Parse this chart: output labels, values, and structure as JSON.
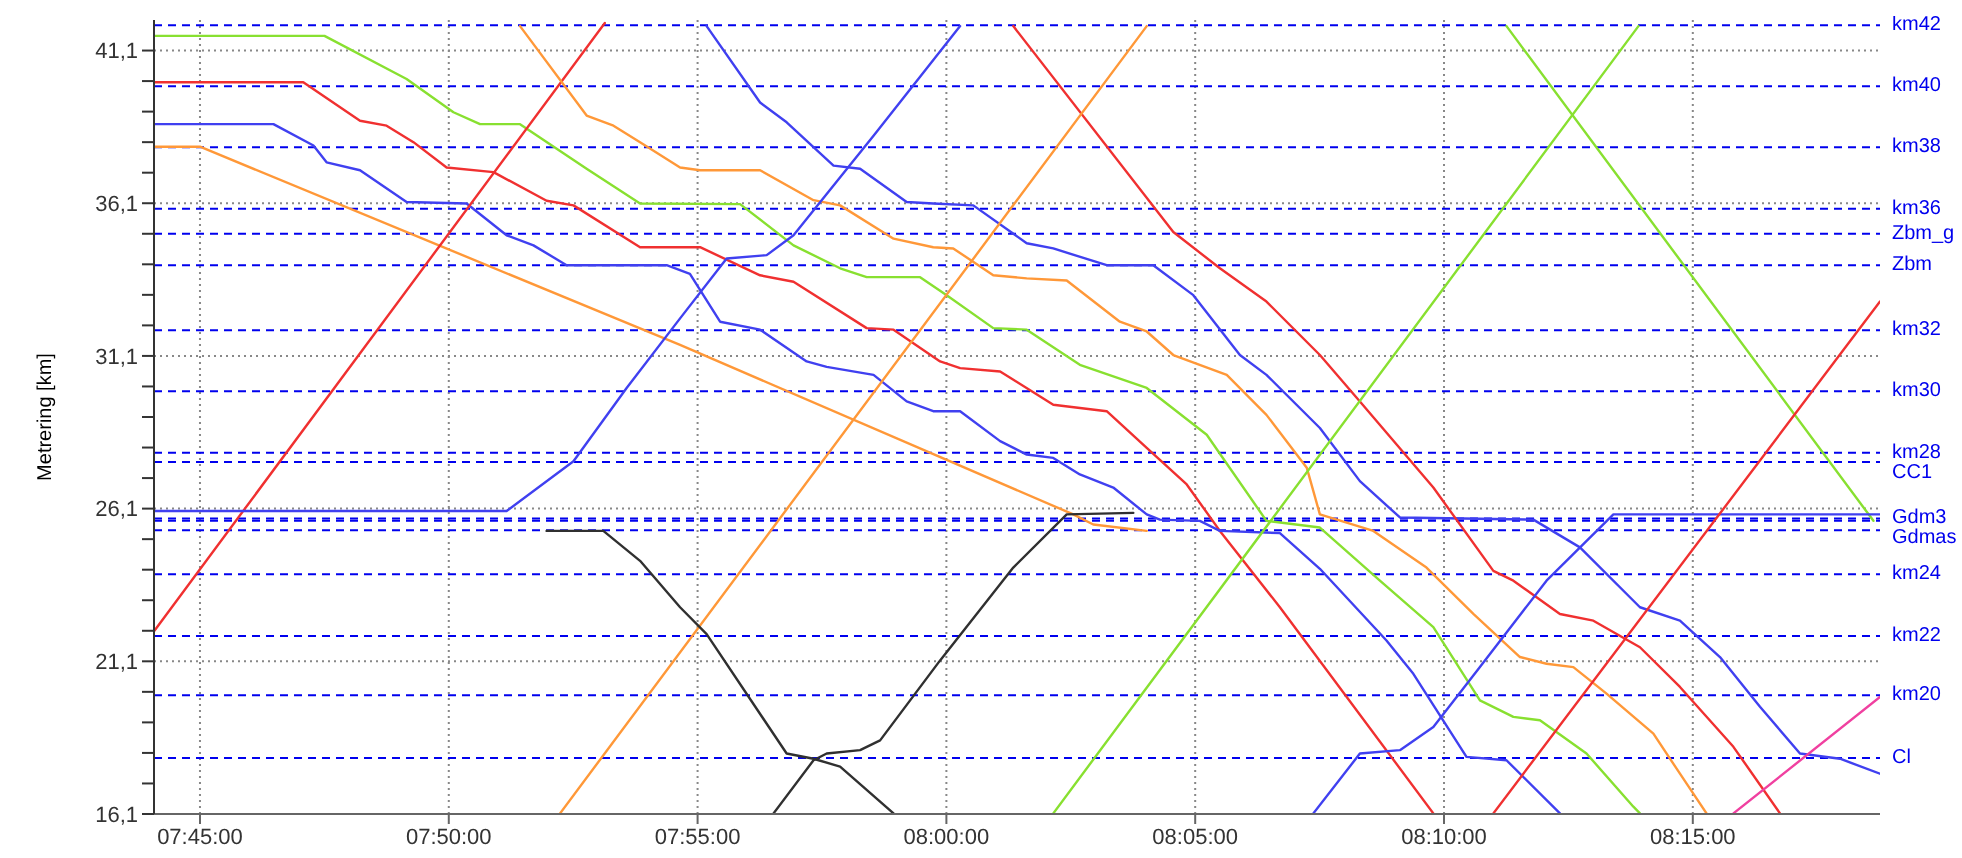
{
  "chart_data": {
    "type": "line",
    "ylabel": "Metrering [km]",
    "xlim": [
      7.7346,
      8.3127
    ],
    "ylim": [
      16.1,
      42.1
    ],
    "xticks": [
      {
        "value": 7.75,
        "label": "07:45:00"
      },
      {
        "value": 7.8333333,
        "label": "07:50:00"
      },
      {
        "value": 7.9166667,
        "label": "07:55:00"
      },
      {
        "value": 8.0,
        "label": "08:00:00"
      },
      {
        "value": 8.0833333,
        "label": "08:05:00"
      },
      {
        "value": 8.1666667,
        "label": "08:10:00"
      },
      {
        "value": 8.25,
        "label": "08:15:00"
      }
    ],
    "yticks": [
      {
        "value": 16.1,
        "label": "16,1"
      },
      {
        "value": 17.1,
        "label": null
      },
      {
        "value": 18.1,
        "label": null
      },
      {
        "value": 19.1,
        "label": null
      },
      {
        "value": 20.1,
        "label": null
      },
      {
        "value": 21.1,
        "label": "21,1"
      },
      {
        "value": 22.1,
        "label": null
      },
      {
        "value": 23.1,
        "label": null
      },
      {
        "value": 24.1,
        "label": null
      },
      {
        "value": 25.1,
        "label": null
      },
      {
        "value": 26.1,
        "label": "26,1"
      },
      {
        "value": 27.1,
        "label": null
      },
      {
        "value": 28.1,
        "label": null
      },
      {
        "value": 29.1,
        "label": null
      },
      {
        "value": 30.1,
        "label": null
      },
      {
        "value": 31.1,
        "label": "31,1"
      },
      {
        "value": 32.1,
        "label": null
      },
      {
        "value": 33.1,
        "label": null
      },
      {
        "value": 34.1,
        "label": null
      },
      {
        "value": 35.1,
        "label": null
      },
      {
        "value": 36.1,
        "label": "36,1"
      },
      {
        "value": 37.1,
        "label": null
      },
      {
        "value": 38.1,
        "label": null
      },
      {
        "value": 39.1,
        "label": null
      },
      {
        "value": 40.1,
        "label": null
      },
      {
        "value": 41.1,
        "label": "41,1"
      }
    ],
    "grid": true,
    "line_style": "solid",
    "ref_lines": [
      {
        "axis": "y",
        "value": 41.93,
        "label": "km42",
        "color": "#0000ee",
        "line_style": "dashed"
      },
      {
        "axis": "y",
        "value": 39.93,
        "label": "km40",
        "color": "#0000ee",
        "line_style": "dashed"
      },
      {
        "axis": "y",
        "value": 37.93,
        "label": "km38",
        "color": "#0000ee",
        "line_style": "dashed"
      },
      {
        "axis": "y",
        "value": 35.92,
        "label": "km36",
        "color": "#0000ee",
        "line_style": "dashed"
      },
      {
        "axis": "y",
        "value": 35.1,
        "label": "Zbm_g",
        "color": "#0000ee",
        "line_style": "dashed"
      },
      {
        "axis": "y",
        "value": 34.07,
        "label": "Zbm",
        "color": "#0000ee",
        "line_style": "dashed"
      },
      {
        "axis": "y",
        "value": 31.94,
        "label": "km32",
        "color": "#0000ee",
        "line_style": "dashed"
      },
      {
        "axis": "y",
        "value": 29.94,
        "label": "km30",
        "color": "#0000ee",
        "line_style": "dashed"
      },
      {
        "axis": "y",
        "value": 27.93,
        "label": "km28",
        "color": "#0000ee",
        "line_style": "dashed"
      },
      {
        "axis": "y",
        "value": 27.63,
        "label": "CC1",
        "color": "#0000ee",
        "line_style": "dashed"
      },
      {
        "axis": "y",
        "value": 25.78,
        "label": "Gdm3",
        "color": "#0000ee",
        "line_style": "dashed"
      },
      {
        "axis": "y",
        "value": 25.7,
        "label": null,
        "color": "#0000ee",
        "line_style": "dashed"
      },
      {
        "axis": "y",
        "value": 25.39,
        "label": "Gdmas",
        "color": "#0000ee",
        "line_style": "dashed"
      },
      {
        "axis": "y",
        "value": 23.95,
        "label": "km24",
        "color": "#0000ee",
        "line_style": "dashed"
      },
      {
        "axis": "y",
        "value": 21.93,
        "label": "km22",
        "color": "#0000ee",
        "line_style": "dashed"
      },
      {
        "axis": "y",
        "value": 19.99,
        "label": "km20",
        "color": "#0000ee",
        "line_style": "dashed"
      },
      {
        "axis": "y",
        "value": 17.93,
        "label": "Cl",
        "color": "#0000ee",
        "line_style": "dashed"
      }
    ],
    "series": [
      {
        "color": "#88e030",
        "x": [
          7.7348,
          7.7917,
          7.8192,
          7.8349,
          7.8438,
          7.8572,
          7.8795,
          7.8974,
          7.9309,
          7.9488,
          7.9644,
          7.9733,
          7.9912,
          8.0001,
          8.0157,
          8.0269,
          8.0447,
          8.0671,
          8.0872,
          8.1072,
          8.1251,
          8.1452,
          8.1631,
          8.1787,
          8.1899,
          8.1988,
          8.2144,
          8.2301,
          8.2323
        ],
        "values": [
          41.58,
          41.58,
          40.17,
          39.08,
          38.69,
          38.69,
          37.23,
          36.09,
          36.07,
          34.72,
          33.97,
          33.68,
          33.68,
          33.09,
          32.01,
          31.96,
          30.81,
          30.05,
          28.52,
          25.7,
          25.48,
          23.74,
          22.22,
          19.82,
          19.28,
          19.17,
          18.08,
          16.34,
          16.12
        ]
      },
      {
        "color": "#f03030",
        "x": [
          7.7348,
          7.7846,
          7.8036,
          7.8125,
          7.8215,
          7.8326,
          7.8483,
          7.8661,
          7.8751,
          7.8974,
          7.9175,
          7.9376,
          7.9488,
          7.9733,
          7.9823,
          7.9979,
          8.0046,
          8.018,
          8.0358,
          8.0537,
          8.0671,
          8.0805,
          8.0916,
          8.1117,
          8.1631
        ],
        "values": [
          40.06,
          40.06,
          38.8,
          38.64,
          38.1,
          37.27,
          37.12,
          36.18,
          36.03,
          34.66,
          34.66,
          33.74,
          33.53,
          32.01,
          31.96,
          30.92,
          30.7,
          30.59,
          29.5,
          29.29,
          28.09,
          26.89,
          25.37,
          22.87,
          16.12
        ]
      },
      {
        "color": "#4040f0",
        "x": [
          7.7348,
          7.7746,
          7.788,
          7.7924,
          7.8036,
          7.8192,
          7.8393,
          7.8527,
          7.8617,
          7.8728,
          7.9063,
          7.9141,
          7.9242,
          7.9376,
          7.9532,
          7.9599,
          7.9756,
          7.9867,
          7.9956,
          8.0046,
          8.018,
          8.0269,
          8.0358,
          8.0447,
          8.0559,
          8.0671,
          8.0715,
          8.0849,
          8.0916,
          8.1117,
          8.1251,
          8.1474,
          8.1564,
          8.1742,
          8.1876,
          8.2055
        ],
        "values": [
          38.69,
          38.69,
          37.99,
          37.44,
          37.18,
          36.14,
          36.09,
          35.05,
          34.72,
          34.07,
          34.07,
          33.79,
          32.22,
          31.96,
          30.92,
          30.74,
          30.48,
          29.61,
          29.29,
          29.29,
          28.31,
          27.87,
          27.76,
          27.22,
          26.79,
          25.91,
          25.74,
          25.7,
          25.37,
          25.3,
          24.13,
          21.78,
          20.69,
          17.97,
          17.86,
          16.12
        ]
      },
      {
        "color": "#ff9838",
        "x": [
          7.7348,
          7.75,
          7.9108,
          8.0425,
          8.0492,
          8.0671
        ],
        "values": [
          37.95,
          37.95,
          31.46,
          25.91,
          25.58,
          25.37
        ]
      },
      {
        "color": "#f03030",
        "x": [
          7.7348,
          7.8856
        ],
        "values": [
          22.11,
          42.0
        ]
      },
      {
        "color": "#ff9838",
        "x": [
          7.8572,
          7.8795,
          7.8885,
          7.8974,
          7.9108,
          7.9175,
          7.9376,
          7.9555,
          7.9644,
          7.9823,
          7.9956,
          8.0023,
          8.0157,
          8.0269,
          8.0403,
          8.0581,
          8.0671,
          8.076,
          8.0939,
          8.1072,
          8.1207,
          8.1251,
          8.143,
          8.1608,
          8.1765,
          8.1921,
          8.201,
          8.21,
          8.2211,
          8.2368,
          8.2457,
          8.2546
        ],
        "values": [
          41.9,
          38.97,
          38.64,
          38.1,
          37.27,
          37.18,
          37.18,
          36.2,
          36.03,
          34.94,
          34.66,
          34.62,
          33.74,
          33.64,
          33.57,
          32.22,
          31.9,
          31.13,
          30.48,
          29.17,
          27.44,
          25.91,
          25.37,
          24.17,
          22.65,
          21.24,
          21.02,
          20.91,
          20.04,
          18.73,
          17.42,
          16.12
        ]
      },
      {
        "color": "#4040f0",
        "x": [
          7.9197,
          7.9376,
          7.9465,
          7.9622,
          7.9711,
          7.9867,
          7.9956,
          8.009,
          8.0269,
          8.0358,
          8.0537,
          8.0693,
          8.0827,
          8.0983,
          8.1072,
          8.1251,
          8.1385,
          8.1519,
          8.1966,
          8.2122,
          8.2323,
          8.2457,
          8.2591,
          8.2725,
          8.2859,
          8.2993,
          8.3127
        ],
        "values": [
          41.9,
          39.4,
          38.75,
          37.33,
          37.23,
          36.14,
          36.09,
          36.03,
          34.79,
          34.62,
          34.07,
          34.07,
          33.09,
          31.13,
          30.48,
          28.74,
          27.0,
          25.81,
          25.74,
          24.83,
          22.87,
          22.43,
          21.24,
          19.61,
          18.08,
          17.91,
          17.42
        ]
      },
      {
        "color": "#f03030",
        "x": [
          8.0224,
          8.076,
          8.0916,
          8.1072,
          8.1251,
          8.1385,
          8.1631,
          8.1832,
          8.1899,
          8.2055,
          8.2167,
          8.2323,
          8.2457,
          8.2636,
          8.2792
        ],
        "values": [
          41.9,
          35.16,
          33.97,
          32.88,
          31.13,
          29.61,
          26.79,
          24.06,
          23.74,
          22.65,
          22.43,
          21.56,
          20.26,
          18.3,
          16.12
        ]
      },
      {
        "color": "#4040f0",
        "x": [
          7.7348,
          7.8527,
          7.8751,
          7.8929,
          7.9108,
          7.9264,
          7.9398,
          7.9488,
          7.9756,
          8.0046
        ],
        "values": [
          26.02,
          26.02,
          27.65,
          30.05,
          32.33,
          34.29,
          34.4,
          35.05,
          38.31,
          41.9
        ]
      },
      {
        "color": "#ff9838",
        "x": [
          7.8706,
          8.0671
        ],
        "values": [
          16.12,
          41.9
        ]
      },
      {
        "color": "#303030",
        "x": [
          7.8661,
          7.8851,
          7.8974,
          7.9108,
          7.9197,
          7.9465,
          7.9555,
          7.9644,
          7.9823
        ],
        "values": [
          25.37,
          25.37,
          24.39,
          22.87,
          21.99,
          18.08,
          17.91,
          17.65,
          16.12
        ]
      },
      {
        "color": "#303030",
        "x": [
          7.9421,
          7.9555,
          7.9599,
          7.9711,
          7.9778,
          7.9979,
          8.0224,
          8.0403,
          8.0626
        ],
        "values": [
          16.12,
          17.86,
          18.08,
          18.19,
          18.51,
          21.13,
          24.17,
          25.91,
          25.96
        ]
      },
      {
        "color": "#88e030",
        "x": [
          8.0358,
          8.2318
        ],
        "values": [
          16.12,
          41.9
        ]
      },
      {
        "color": "#88e030",
        "x": [
          8.1876,
          8.3105
        ],
        "values": [
          41.9,
          25.7
        ]
      },
      {
        "color": "#4040f0",
        "x": [
          8.1229,
          8.1385,
          8.1519,
          8.1631,
          8.1787,
          8.201,
          8.2234,
          8.3127
        ],
        "values": [
          16.12,
          18.08,
          18.19,
          18.95,
          20.91,
          23.74,
          25.91,
          25.91
        ]
      },
      {
        "color": "#f03030",
        "x": [
          8.1832,
          8.3127
        ],
        "values": [
          16.12,
          32.88
        ]
      },
      {
        "color": "#f040a0",
        "x": [
          8.2636,
          8.3127
        ],
        "values": [
          16.12,
          19.93
        ]
      }
    ]
  }
}
